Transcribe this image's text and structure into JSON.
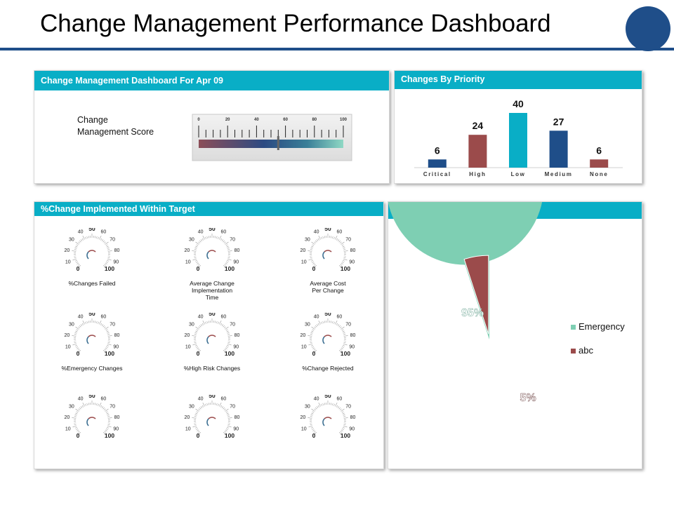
{
  "page_title": "Change Management Performance Dashboard",
  "colors": {
    "accent_blue": "#1f4e89",
    "header_teal": "#09aec6",
    "bar_red": "#9b4b4b",
    "bar_teal": "#09aec6",
    "pie_green": "#7ecfb3",
    "pie_red": "#9b4b4b"
  },
  "score_panel": {
    "header": "Change Management Dashboard For Apr 09",
    "label": "Change Management Score",
    "scale_ticks": [
      "0",
      "20",
      "40",
      "60",
      "80",
      "100"
    ],
    "score_value": 55
  },
  "priority_panel": {
    "header": "Changes By Priority"
  },
  "gauge_panel": {
    "header": "%Change Implemented Within Target",
    "gauges": [
      {
        "label": "%Changes Failed"
      },
      {
        "label": "Average Change Implementation Time"
      },
      {
        "label": "Average Cost Per Change"
      },
      {
        "label": "%Emergency Changes"
      },
      {
        "label": "%High Risk Changes"
      },
      {
        "label": "%Change Rejected"
      },
      {
        "label": ""
      },
      {
        "label": ""
      },
      {
        "label": ""
      }
    ],
    "dial_ticks": [
      "0",
      "10",
      "20",
      "30",
      "40",
      "50",
      "60",
      "70",
      "80",
      "90",
      "100"
    ]
  },
  "pie_panel": {
    "header": ""
  },
  "chart_data": [
    {
      "type": "bar",
      "categories": [
        "Critical",
        "High",
        "Low",
        "Medium",
        "None"
      ],
      "values": [
        6,
        24,
        40,
        27,
        6
      ],
      "bar_colors": [
        "#1f4e89",
        "#9b4b4b",
        "#09aec6",
        "#1f4e89",
        "#9b4b4b"
      ],
      "title": "Changes By Priority",
      "xlabel": "",
      "ylabel": "",
      "ylim": [
        0,
        40
      ],
      "grid": false
    },
    {
      "type": "pie",
      "labels": [
        "Emergency",
        "abc"
      ],
      "values": [
        95,
        5
      ],
      "value_labels": [
        "95%",
        "5%"
      ],
      "colors": [
        "#7ecfb3",
        "#9b4b4b"
      ],
      "legend": "right"
    }
  ]
}
